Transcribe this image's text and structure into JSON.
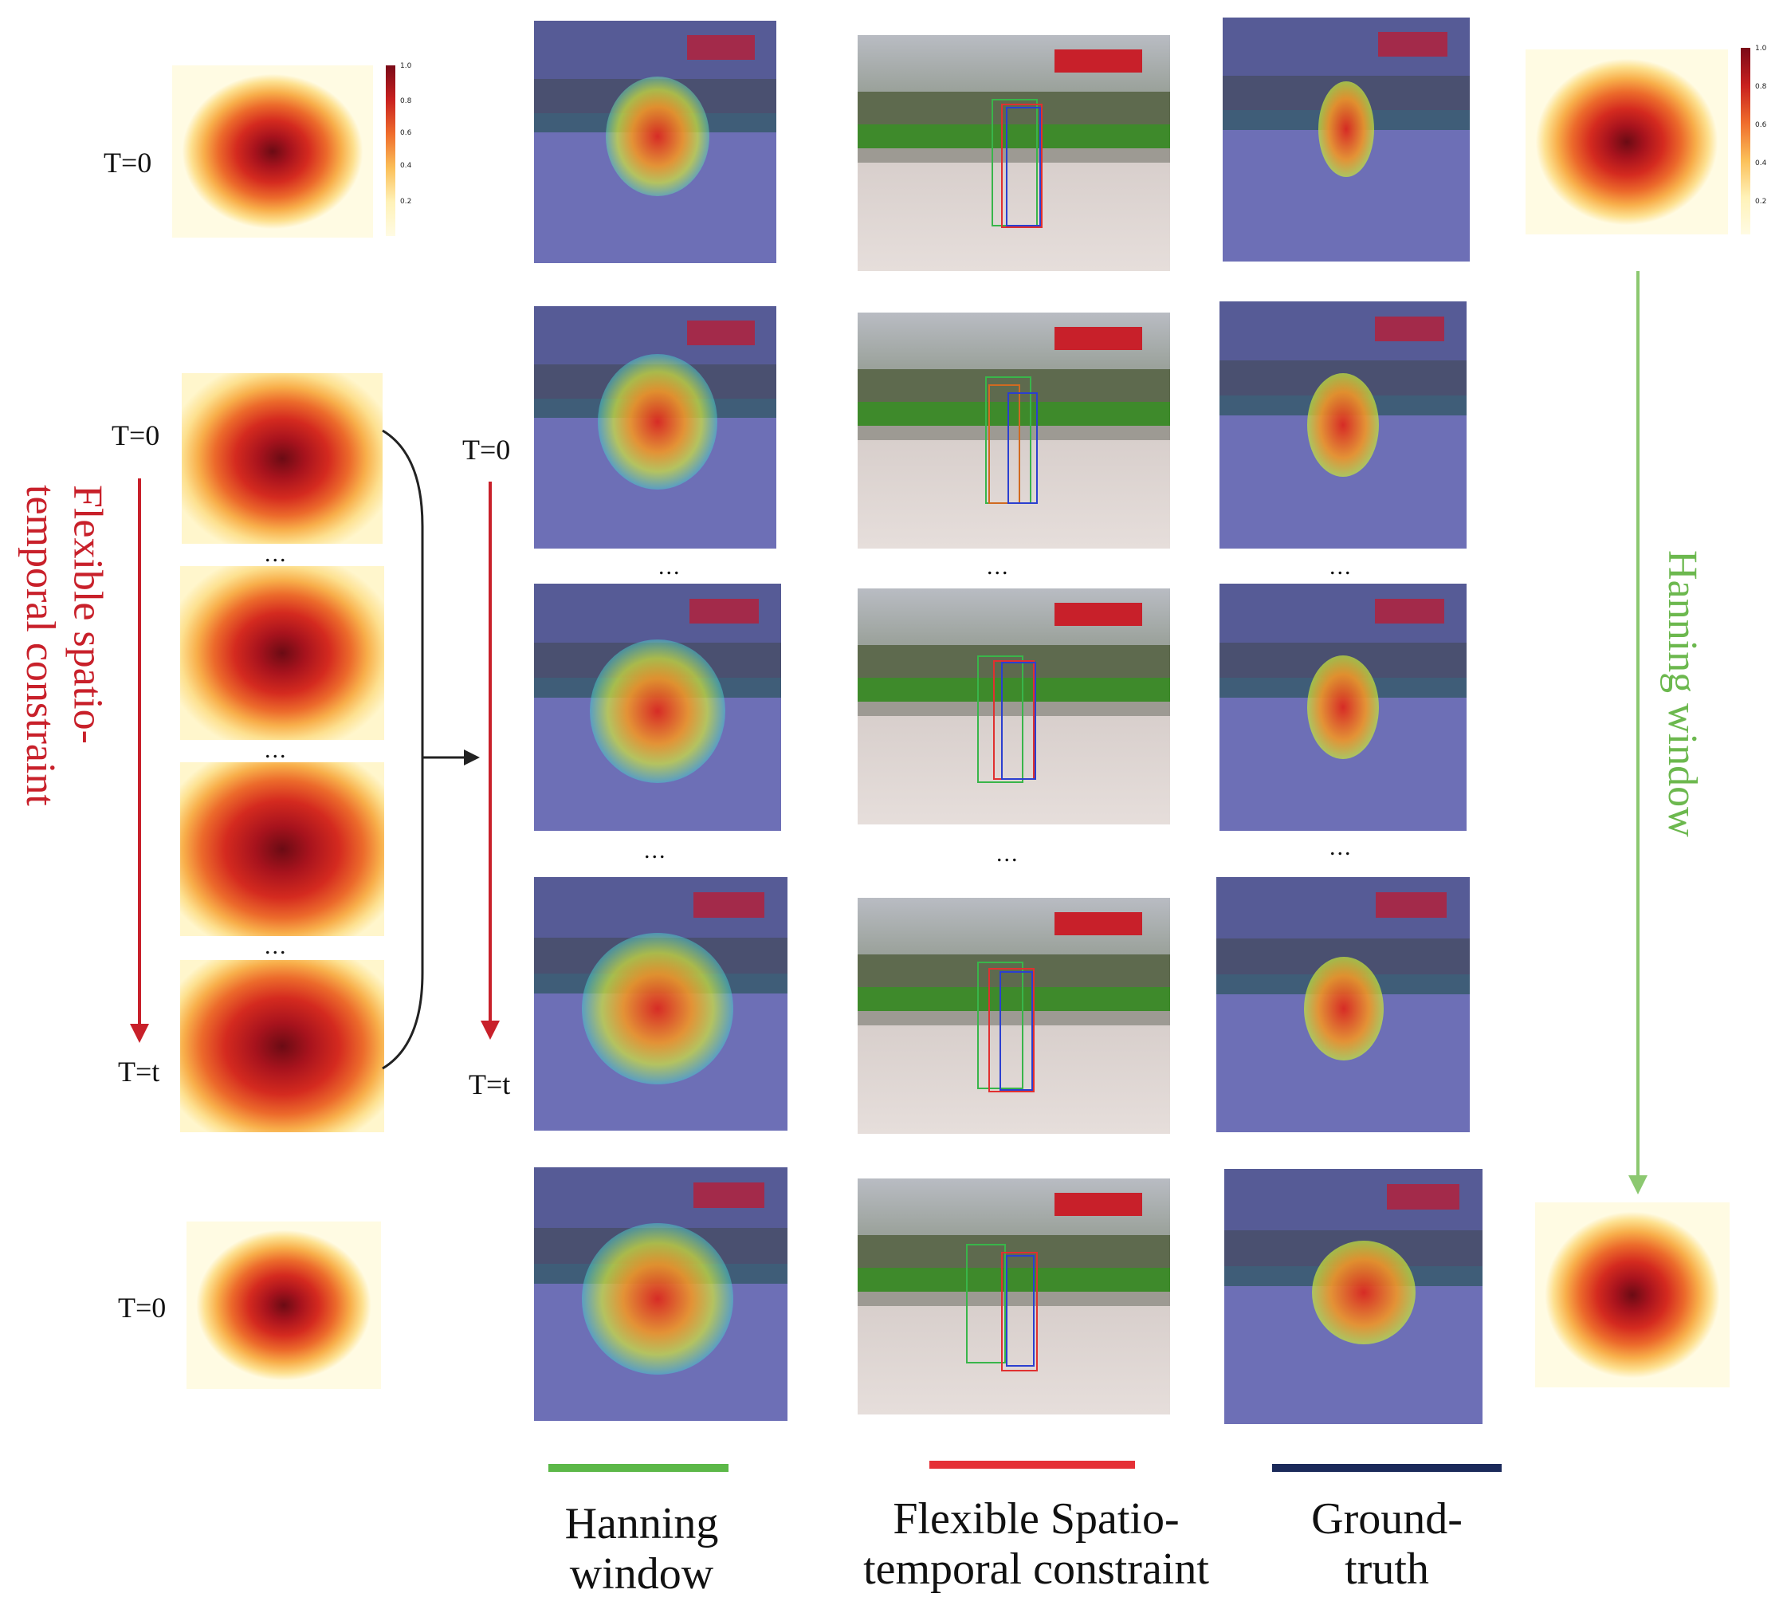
{
  "labels": {
    "t0": "T=0",
    "tt": "T=t",
    "dots": "...",
    "left_vertical": "Flexible spatio-temporal constraint",
    "right_vertical": "Hanning window"
  },
  "colorbar": {
    "ticks": [
      "1.0",
      "0.8",
      "0.6",
      "0.4",
      "0.2"
    ]
  },
  "legend": [
    {
      "label": "Hanning window",
      "color": "#5cb848"
    },
    {
      "label": "Flexible Spatio-temporal constraint",
      "color": "#e53036"
    },
    {
      "label": "Ground-truth",
      "color": "#1b2a5a"
    }
  ],
  "colors": {
    "red_arrow": "#c8202a",
    "green_arrow": "#8cc870",
    "box_green": "#39b54a",
    "box_red": "#e03030",
    "box_blue": "#2b3fd0",
    "box_orange": "#d06a20"
  }
}
